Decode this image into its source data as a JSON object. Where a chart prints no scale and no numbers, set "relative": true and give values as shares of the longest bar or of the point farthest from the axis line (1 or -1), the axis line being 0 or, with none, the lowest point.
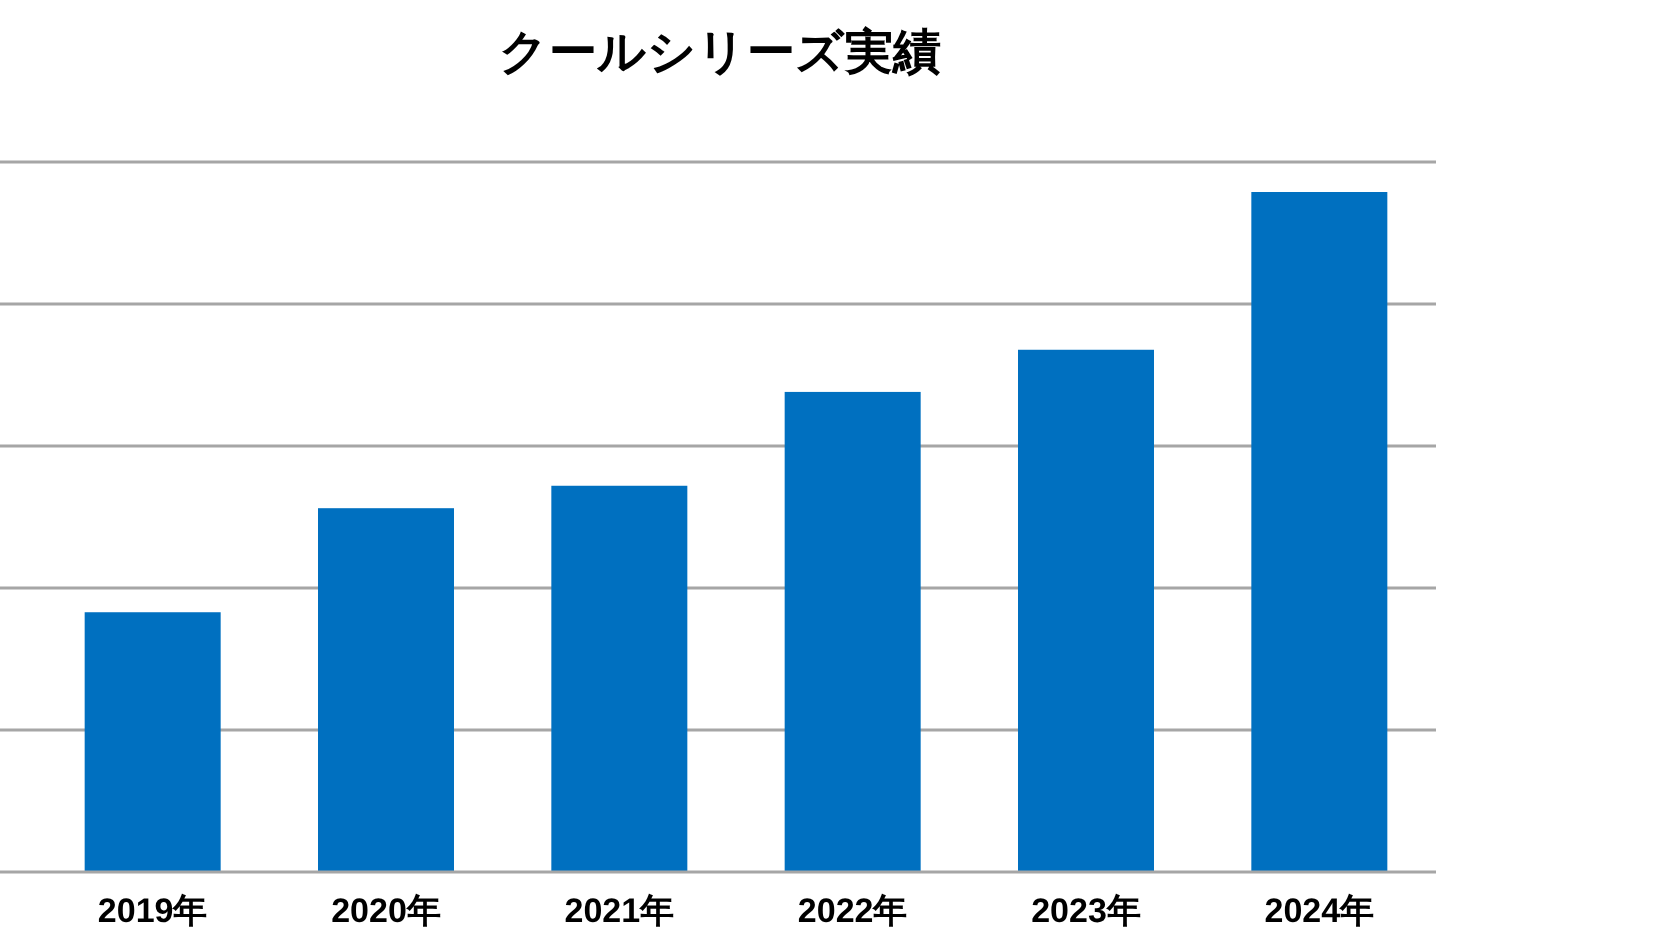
{
  "chart_data": {
    "type": "bar",
    "title": "クールシリーズ実績",
    "categories": [
      "2019年",
      "2020年",
      "2021年",
      "2022年",
      "2023年",
      "2024年"
    ],
    "values": [
      0.382,
      0.535,
      0.568,
      0.706,
      0.768,
      1
    ],
    "color": "#0070c0",
    "relative": true,
    "grid": "y"
  }
}
